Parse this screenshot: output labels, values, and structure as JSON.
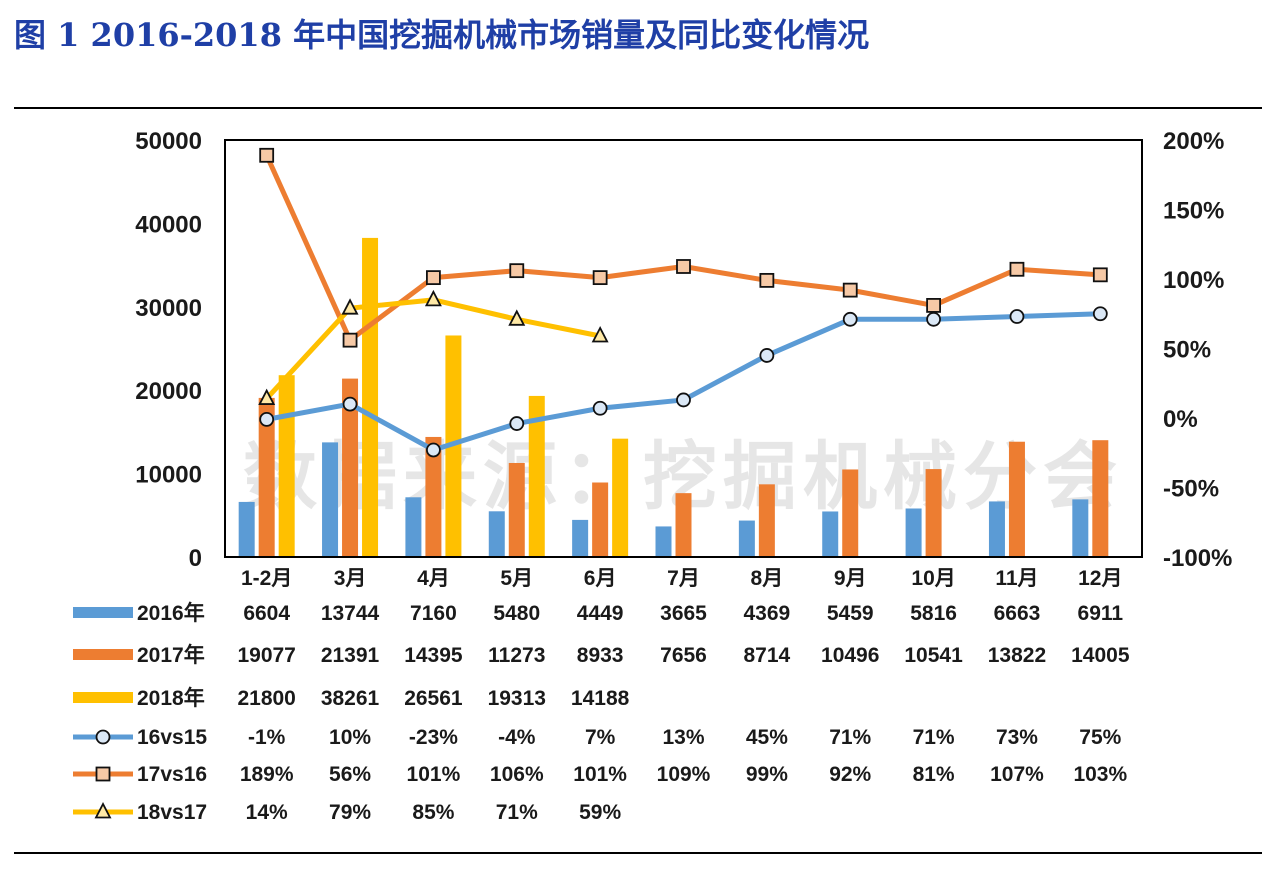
{
  "figure": {
    "title": "图 1    2016-2018 年中国挖掘机械市场销量及同比变化情况",
    "watermark": "数据来源：挖掘机械分会"
  },
  "chart_data": {
    "type": "bar",
    "categories": [
      "1-2月",
      "3月",
      "4月",
      "5月",
      "6月",
      "7月",
      "8月",
      "9月",
      "10月",
      "11月",
      "12月"
    ],
    "ylim": [
      0,
      50000
    ],
    "y_ticks": [
      "0",
      "10000",
      "20000",
      "30000",
      "40000",
      "50000"
    ],
    "y2lim": [
      -100,
      200
    ],
    "y2_ticks": [
      "-100%",
      "-50%",
      "0%",
      "50%",
      "100%",
      "150%",
      "200%"
    ],
    "grid": false,
    "bar_series": [
      {
        "name": "2016年",
        "color": "#5b9bd5",
        "values": [
          6604,
          13744,
          7160,
          5480,
          4449,
          3665,
          4369,
          5459,
          5816,
          6663,
          6911
        ]
      },
      {
        "name": "2017年",
        "color": "#ed7d31",
        "values": [
          19077,
          21391,
          14395,
          11273,
          8933,
          7656,
          8714,
          10496,
          10541,
          13822,
          14005
        ]
      },
      {
        "name": "2018年",
        "color": "#ffc000",
        "values": [
          21800,
          38261,
          26561,
          19313,
          14188,
          null,
          null,
          null,
          null,
          null,
          null
        ]
      }
    ],
    "line_series": [
      {
        "name": "16vs15",
        "color": "#5b9bd5",
        "marker": "circle",
        "values": [
          -1,
          10,
          -23,
          -4,
          7,
          13,
          45,
          71,
          71,
          73,
          75
        ]
      },
      {
        "name": "17vs16",
        "color": "#ed7d31",
        "marker": "square",
        "values": [
          189,
          56,
          101,
          106,
          101,
          109,
          99,
          92,
          81,
          107,
          103
        ]
      },
      {
        "name": "18vs17",
        "color": "#ffc000",
        "marker": "triangle",
        "values": [
          14,
          79,
          85,
          71,
          59,
          null,
          null,
          null,
          null,
          null,
          null
        ]
      }
    ]
  }
}
